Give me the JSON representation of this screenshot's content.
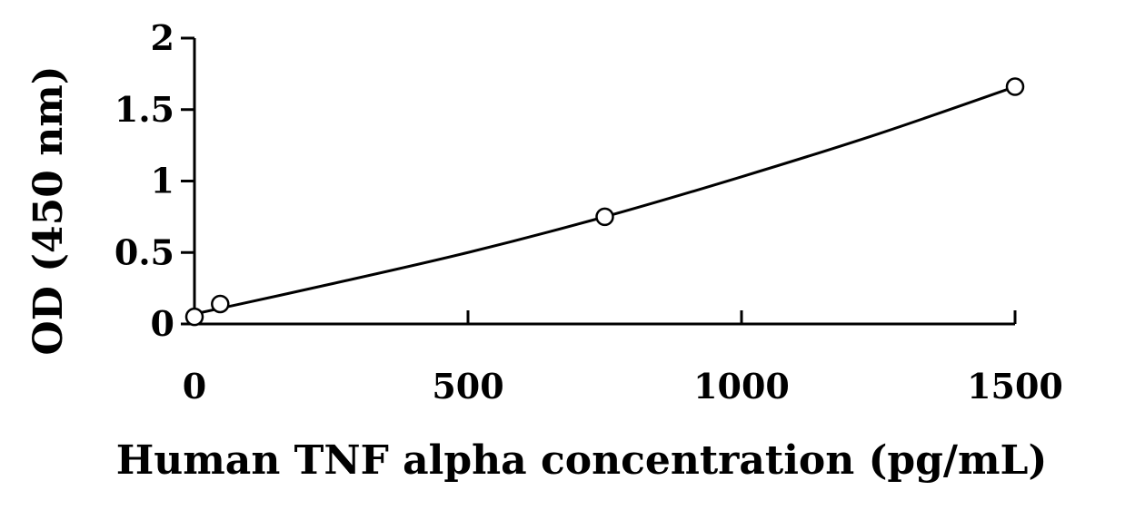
{
  "chart_data": {
    "type": "scatter",
    "title": "",
    "xlabel": "Human TNF alpha concentration (pg/mL)",
    "ylabel": "OD (450 nm)",
    "xlim": [
      0,
      1500
    ],
    "ylim": [
      0,
      2
    ],
    "x_ticks": [
      0,
      500,
      1000,
      1500
    ],
    "x_tick_labels": [
      "0",
      "500",
      "1000",
      "1500"
    ],
    "y_ticks": [
      0,
      0.5,
      1,
      1.5,
      2
    ],
    "y_tick_labels": [
      "0",
      "0.5",
      "1",
      "1.5",
      "2"
    ],
    "grid": false,
    "legend": "none",
    "series": [
      {
        "type": "scatter",
        "marker": "open-circle",
        "x": [
          0,
          47,
          750,
          1500
        ],
        "y": [
          0.05,
          0.14,
          0.75,
          1.66
        ]
      },
      {
        "type": "fit-line",
        "x": [
          0,
          250,
          500,
          750,
          1000,
          1250,
          1500
        ],
        "y": [
          0.07,
          0.28,
          0.5,
          0.75,
          1.03,
          1.33,
          1.66
        ]
      }
    ],
    "colors": {
      "axes": "#000000",
      "line": "#000000",
      "marker_fill": "#ffffff"
    }
  }
}
